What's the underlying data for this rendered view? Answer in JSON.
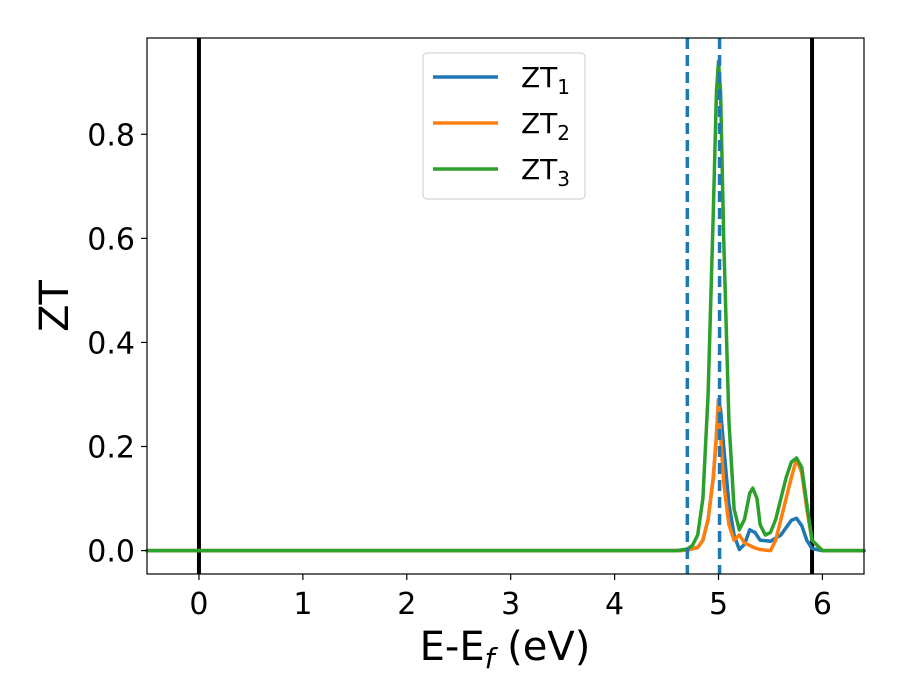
{
  "chart_data": {
    "type": "line",
    "xlabel": "E-E",
    "xlabel_subscript": "f",
    "xlabel_unit": " (eV)",
    "ylabel": "ZT",
    "xlim": [
      -0.5,
      6.4
    ],
    "ylim": [
      -0.045,
      0.985
    ],
    "xticks": [
      0,
      1,
      2,
      3,
      4,
      5,
      6
    ],
    "xtick_labels": [
      "0",
      "1",
      "2",
      "3",
      "4",
      "5",
      "6"
    ],
    "yticks": [
      0.0,
      0.2,
      0.4,
      0.6,
      0.8
    ],
    "ytick_labels": [
      "0.0",
      "0.2",
      "0.4",
      "0.6",
      "0.8"
    ],
    "grid": false,
    "legend_position": "top-center",
    "vlines_solid": [
      0.0,
      5.9
    ],
    "vlines_dashed": [
      4.7,
      5.01
    ],
    "series": [
      {
        "name": "ZT",
        "subscript": "1",
        "color": "#1f77b4",
        "x": [
          -0.5,
          4.5,
          4.6,
          4.7,
          4.8,
          4.85,
          4.9,
          4.95,
          4.98,
          5.0,
          5.02,
          5.05,
          5.1,
          5.15,
          5.2,
          5.25,
          5.3,
          5.35,
          5.4,
          5.5,
          5.6,
          5.7,
          5.75,
          5.8,
          5.85,
          5.9,
          6.0,
          6.4
        ],
        "y": [
          0.0,
          0.0,
          0.0,
          0.001,
          0.006,
          0.02,
          0.06,
          0.14,
          0.22,
          0.29,
          0.27,
          0.2,
          0.09,
          0.03,
          0.002,
          0.012,
          0.04,
          0.035,
          0.02,
          0.018,
          0.03,
          0.058,
          0.062,
          0.048,
          0.02,
          0.004,
          0.0,
          0.0
        ]
      },
      {
        "name": "ZT",
        "subscript": "2",
        "color": "#ff7f0e",
        "x": [
          -0.5,
          4.5,
          4.6,
          4.7,
          4.8,
          4.85,
          4.9,
          4.95,
          4.98,
          5.0,
          5.02,
          5.05,
          5.1,
          5.15,
          5.2,
          5.25,
          5.3,
          5.35,
          5.4,
          5.45,
          5.5,
          5.55,
          5.6,
          5.7,
          5.75,
          5.8,
          5.85,
          5.9,
          6.0,
          6.4
        ],
        "y": [
          0.0,
          0.0,
          0.0,
          0.001,
          0.006,
          0.02,
          0.06,
          0.14,
          0.22,
          0.29,
          0.22,
          0.13,
          0.05,
          0.02,
          0.03,
          0.015,
          0.01,
          0.005,
          0.002,
          0.001,
          0.0,
          0.02,
          0.06,
          0.14,
          0.175,
          0.15,
          0.08,
          0.02,
          0.0,
          0.0
        ]
      },
      {
        "name": "ZT",
        "subscript": "3",
        "color": "#2ca02c",
        "x": [
          -0.5,
          4.5,
          4.6,
          4.7,
          4.75,
          4.8,
          4.85,
          4.9,
          4.95,
          4.98,
          5.0,
          5.02,
          5.05,
          5.1,
          5.15,
          5.2,
          5.25,
          5.3,
          5.33,
          5.37,
          5.4,
          5.45,
          5.5,
          5.55,
          5.6,
          5.65,
          5.7,
          5.75,
          5.8,
          5.85,
          5.9,
          6.0,
          6.4
        ],
        "y": [
          0.0,
          0.0,
          0.0,
          0.003,
          0.01,
          0.03,
          0.1,
          0.3,
          0.65,
          0.88,
          0.94,
          0.88,
          0.6,
          0.25,
          0.08,
          0.04,
          0.06,
          0.11,
          0.12,
          0.1,
          0.05,
          0.03,
          0.035,
          0.06,
          0.1,
          0.14,
          0.17,
          0.178,
          0.16,
          0.09,
          0.02,
          0.0,
          0.0
        ]
      }
    ]
  }
}
